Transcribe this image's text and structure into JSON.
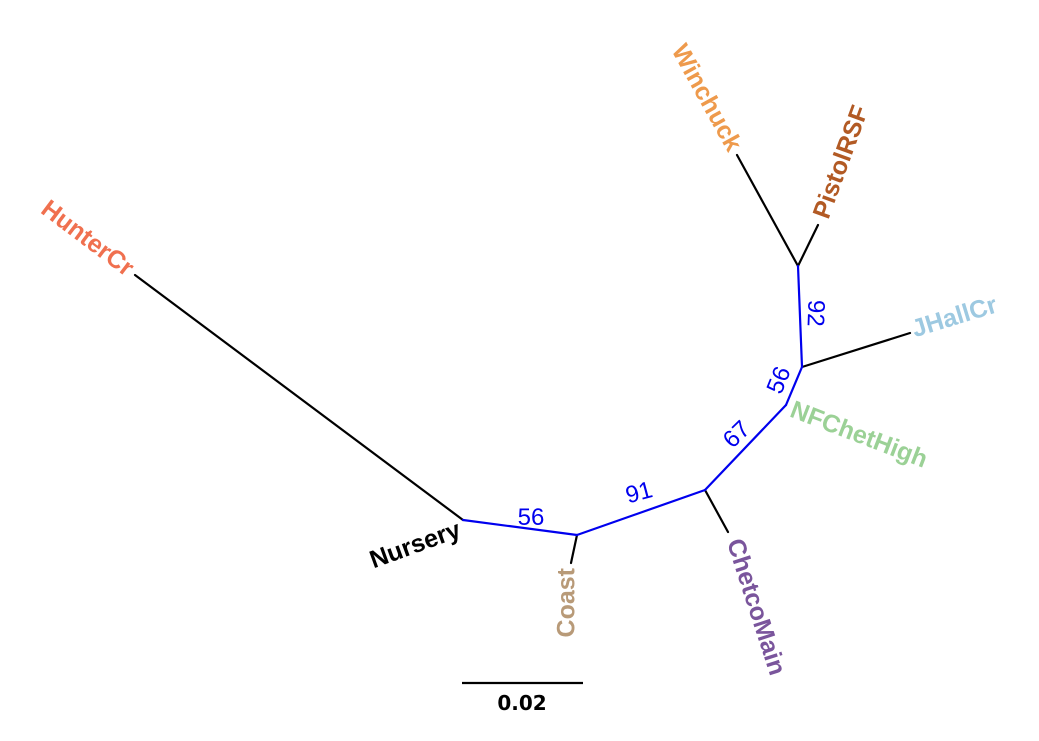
{
  "tree": {
    "type": "unrooted-phylogenetic-tree",
    "tips": [
      {
        "name": "HunterCr",
        "color": "#f0704f"
      },
      {
        "name": "Winchuck",
        "color": "#ee9a4c"
      },
      {
        "name": "PistolRSF",
        "color": "#b25a24"
      },
      {
        "name": "JHallCr",
        "color": "#9dc9e1"
      },
      {
        "name": "NFChetHigh",
        "color": "#9bd196"
      },
      {
        "name": "ChetcoMain",
        "color": "#7a559c"
      },
      {
        "name": "Coast",
        "color": "#b89a78"
      },
      {
        "name": "Nursery",
        "color": "#000000"
      }
    ],
    "support_values": [
      "56",
      "91",
      "67",
      "56",
      "92"
    ],
    "support_color": "#0000ee",
    "scale_bar": {
      "label": "0.02",
      "length": 0.02
    }
  }
}
